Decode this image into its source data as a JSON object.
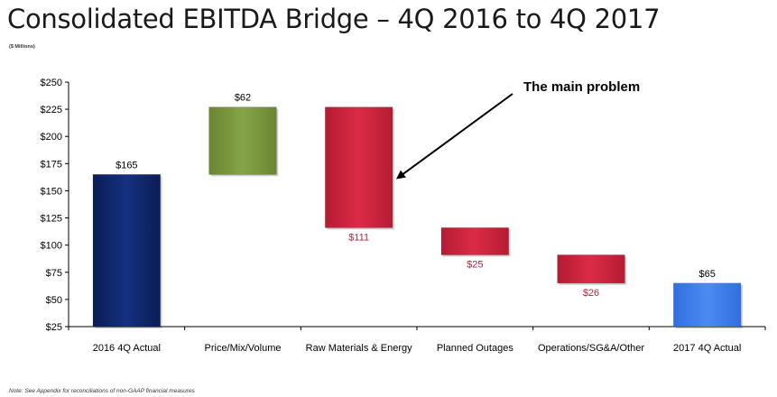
{
  "header": {
    "title": "Consolidated EBITDA Bridge – 4Q 2016 to 4Q 2017",
    "units": "($ Millions)"
  },
  "footer": {
    "note": "Note: See Appendix for reconciliations of non-GAAP financial measures"
  },
  "colors": {
    "total_start": "#0d2466",
    "increase": "#77933c",
    "decrease": "#c8203a",
    "total_end": "#3a7ae8",
    "decrease_label": "#b8203a"
  },
  "chart_data": {
    "type": "bar",
    "subtype": "waterfall",
    "ylim": [
      25,
      250
    ],
    "yticks": [
      25,
      50,
      75,
      100,
      125,
      150,
      175,
      200,
      225,
      250
    ],
    "ytick_labels": [
      "$25",
      "$50",
      "$75",
      "$100",
      "$125",
      "$150",
      "$175",
      "$200",
      "$225",
      "$250"
    ],
    "categories": [
      "2016 4Q Actual",
      "Price/Mix/Volume",
      "Raw Materials & Energy",
      "Planned Outages",
      "Operations/SG&A/Other",
      "2017 4Q Actual"
    ],
    "bars": [
      {
        "category": "2016 4Q Actual",
        "kind": "total",
        "start": 0,
        "end": 165,
        "label": "$165"
      },
      {
        "category": "Price/Mix/Volume",
        "kind": "increase",
        "start": 165,
        "end": 227,
        "label": "$62"
      },
      {
        "category": "Raw Materials & Energy",
        "kind": "decrease",
        "start": 227,
        "end": 116,
        "label": "$111"
      },
      {
        "category": "Planned Outages",
        "kind": "decrease",
        "start": 116,
        "end": 91,
        "label": "$25"
      },
      {
        "category": "Operations/SG&A/Other",
        "kind": "decrease",
        "start": 91,
        "end": 65,
        "label": "$26"
      },
      {
        "category": "2017 4Q Actual",
        "kind": "total",
        "start": 0,
        "end": 65,
        "label": "$65"
      }
    ],
    "annotation": {
      "text": "The main problem",
      "target": "Raw Materials & Energy"
    },
    "grid": false,
    "legend": "none"
  }
}
